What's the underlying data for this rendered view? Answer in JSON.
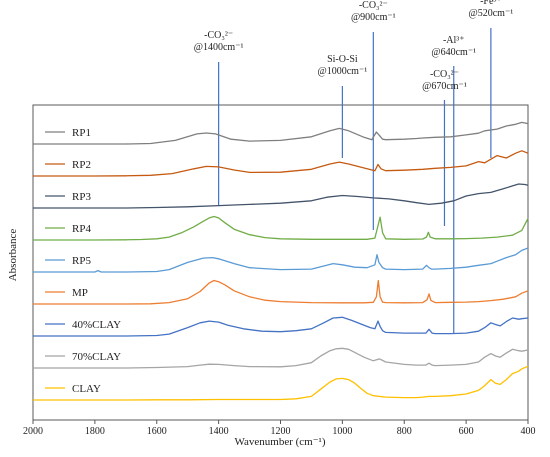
{
  "chart_data": {
    "type": "line",
    "title": "",
    "xlabel": "Wavenumber (cm⁻¹)",
    "ylabel": "Absorbance",
    "xlim": [
      2000,
      400
    ],
    "x_reversed": true,
    "xticks": [
      "2000",
      "1800",
      "1600",
      "1400",
      "1200",
      "1000",
      "800",
      "600",
      "400"
    ],
    "grid": false,
    "legend": "inline-left",
    "annotations": [
      {
        "line1": "-CO₃²⁻",
        "line2": "@1400cm⁻¹",
        "x": 1400,
        "color": "#4472c4"
      },
      {
        "line1": "Si-O-Si",
        "line2": "@1000cm⁻¹",
        "x": 1000,
        "color": "#4472c4"
      },
      {
        "line1": "-CO₃²⁻",
        "line2": "@900cm⁻¹",
        "x": 900,
        "color": "#4472c4"
      },
      {
        "line1": "-CO₃²⁻",
        "line2": "@670cm⁻¹",
        "x": 670,
        "color": "#4472c4"
      },
      {
        "line1": "-Al³⁺",
        "line2": "@640cm⁻¹",
        "x": 640,
        "color": "#4472c4"
      },
      {
        "line1": "-Fe³⁺",
        "line2": "@520cm⁻¹",
        "x": 520,
        "color": "#4472c4"
      }
    ],
    "series": [
      {
        "name": "RP1",
        "color": "#7f7f7f",
        "x": [
          2000,
          1700,
          1620,
          1540,
          1470,
          1440,
          1410,
          1360,
          1300,
          1200,
          1100,
          1040,
          1010,
          980,
          930,
          905,
          890,
          880,
          870,
          860,
          800,
          760,
          740,
          700,
          650,
          600,
          560,
          540,
          500,
          470,
          440,
          420,
          400
        ],
        "y": [
          0,
          0,
          0.02,
          0.15,
          0.42,
          0.46,
          0.42,
          0.2,
          0.12,
          0.15,
          0.3,
          0.55,
          0.65,
          0.55,
          0.28,
          0.18,
          0.5,
          0.35,
          0.2,
          0.18,
          0.2,
          0.23,
          0.25,
          0.28,
          0.3,
          0.38,
          0.45,
          0.55,
          0.62,
          0.75,
          0.82,
          0.9,
          0.85
        ]
      },
      {
        "name": "RP2",
        "color": "#c55a11",
        "x": [
          2000,
          1800,
          1700,
          1620,
          1550,
          1480,
          1440,
          1400,
          1350,
          1300,
          1200,
          1100,
          1040,
          1010,
          980,
          920,
          895,
          885,
          875,
          860,
          800,
          740,
          700,
          650,
          600,
          560,
          540,
          500,
          470,
          440,
          420,
          400
        ],
        "y": [
          0,
          0,
          0.01,
          0.03,
          0.1,
          0.3,
          0.4,
          0.38,
          0.25,
          0.15,
          0.16,
          0.28,
          0.5,
          0.58,
          0.5,
          0.3,
          0.22,
          0.48,
          0.3,
          0.22,
          0.24,
          0.28,
          0.32,
          0.36,
          0.42,
          0.6,
          0.55,
          0.85,
          0.75,
          0.95,
          1.05,
          0.95
        ]
      },
      {
        "name": "RP3",
        "color": "#44546a",
        "x": [
          2000,
          1700,
          1600,
          1500,
          1400,
          1300,
          1200,
          1100,
          1050,
          1000,
          950,
          900,
          850,
          800,
          760,
          720,
          680,
          640,
          600,
          560,
          520,
          480,
          450,
          430,
          410,
          400
        ],
        "y": [
          0,
          0,
          0.02,
          0.05,
          0.1,
          0.15,
          0.2,
          0.3,
          0.45,
          0.52,
          0.48,
          0.42,
          0.38,
          0.3,
          0.22,
          0.15,
          0.2,
          0.3,
          0.5,
          0.6,
          0.65,
          0.8,
          0.92,
          1.0,
          0.98,
          0.95
        ]
      },
      {
        "name": "RP4",
        "color": "#70ad47",
        "x": [
          2000,
          1800,
          1700,
          1650,
          1600,
          1560,
          1520,
          1480,
          1450,
          1430,
          1415,
          1400,
          1380,
          1350,
          1300,
          1250,
          1200,
          1100,
          1000,
          920,
          895,
          885,
          878,
          870,
          860,
          800,
          740,
          728,
          722,
          716,
          700,
          650,
          600,
          550,
          500,
          450,
          420,
          400
        ],
        "y": [
          0,
          0,
          0.01,
          0.02,
          0.05,
          0.12,
          0.3,
          0.55,
          0.78,
          0.92,
          0.98,
          0.92,
          0.72,
          0.45,
          0.22,
          0.1,
          0.05,
          0.03,
          0.03,
          0.03,
          0.08,
          0.6,
          0.95,
          0.3,
          0.05,
          0.03,
          0.04,
          0.12,
          0.32,
          0.12,
          0.05,
          0.05,
          0.06,
          0.08,
          0.12,
          0.2,
          0.4,
          0.9
        ]
      },
      {
        "name": "RP5",
        "color": "#5b9bd5",
        "x": [
          2000,
          1800,
          1790,
          1780,
          1700,
          1600,
          1560,
          1500,
          1450,
          1420,
          1400,
          1350,
          1300,
          1200,
          1100,
          1060,
          1030,
          1000,
          960,
          920,
          895,
          888,
          882,
          870,
          860,
          800,
          740,
          728,
          720,
          712,
          700,
          650,
          600,
          560,
          520,
          500,
          470,
          440,
          420,
          400
        ],
        "y": [
          0,
          0,
          0.06,
          0,
          0,
          0.02,
          0.1,
          0.4,
          0.58,
          0.6,
          0.55,
          0.35,
          0.18,
          0.1,
          0.12,
          0.25,
          0.35,
          0.3,
          0.2,
          0.18,
          0.3,
          0.72,
          0.4,
          0.18,
          0.12,
          0.1,
          0.12,
          0.28,
          0.18,
          0.12,
          0.12,
          0.15,
          0.2,
          0.28,
          0.35,
          0.45,
          0.6,
          0.72,
          0.9,
          1.0
        ]
      },
      {
        "name": "MP",
        "color": "#ed7d31",
        "x": [
          2000,
          1700,
          1620,
          1560,
          1500,
          1460,
          1430,
          1415,
          1400,
          1380,
          1350,
          1300,
          1250,
          1200,
          1100,
          1000,
          930,
          900,
          890,
          884,
          878,
          870,
          860,
          800,
          740,
          726,
          720,
          714,
          700,
          650,
          600,
          560,
          520,
          480,
          440,
          420,
          400
        ],
        "y": [
          0,
          0,
          0.01,
          0.06,
          0.22,
          0.52,
          0.88,
          0.98,
          0.93,
          0.8,
          0.55,
          0.3,
          0.16,
          0.1,
          0.06,
          0.05,
          0.05,
          0.07,
          0.3,
          0.98,
          0.3,
          0.08,
          0.06,
          0.05,
          0.06,
          0.18,
          0.42,
          0.15,
          0.06,
          0.07,
          0.08,
          0.1,
          0.14,
          0.2,
          0.3,
          0.45,
          0.55
        ]
      },
      {
        "name": "40%CLAY",
        "color": "#4472c4",
        "x": [
          2000,
          1700,
          1600,
          1560,
          1500,
          1460,
          1430,
          1400,
          1370,
          1320,
          1260,
          1200,
          1150,
          1100,
          1060,
          1030,
          1000,
          970,
          940,
          910,
          895,
          885,
          878,
          870,
          860,
          800,
          760,
          730,
          720,
          710,
          700,
          650,
          600,
          560,
          540,
          520,
          505,
          490,
          470,
          450,
          430,
          420,
          400
        ],
        "y": [
          0,
          0,
          0.02,
          0.08,
          0.35,
          0.55,
          0.62,
          0.58,
          0.45,
          0.3,
          0.2,
          0.18,
          0.22,
          0.3,
          0.55,
          0.75,
          0.78,
          0.65,
          0.5,
          0.35,
          0.3,
          0.62,
          0.4,
          0.22,
          0.15,
          0.12,
          0.12,
          0.12,
          0.28,
          0.12,
          0.1,
          0.1,
          0.12,
          0.2,
          0.35,
          0.55,
          0.48,
          0.42,
          0.6,
          0.75,
          0.7,
          0.72,
          0.75
        ]
      },
      {
        "name": "70%CLAY",
        "color": "#a5a5a5",
        "x": [
          2000,
          1700,
          1600,
          1500,
          1460,
          1430,
          1400,
          1350,
          1300,
          1200,
          1150,
          1100,
          1070,
          1040,
          1020,
          1000,
          980,
          960,
          930,
          900,
          880,
          860,
          800,
          760,
          730,
          720,
          710,
          700,
          650,
          600,
          560,
          540,
          520,
          505,
          490,
          470,
          450,
          430,
          420,
          400
        ],
        "y": [
          0,
          0,
          0.02,
          0.06,
          0.12,
          0.16,
          0.15,
          0.1,
          0.06,
          0.05,
          0.1,
          0.22,
          0.5,
          0.72,
          0.8,
          0.82,
          0.78,
          0.65,
          0.45,
          0.3,
          0.38,
          0.25,
          0.15,
          0.12,
          0.12,
          0.2,
          0.12,
          0.1,
          0.12,
          0.15,
          0.25,
          0.45,
          0.6,
          0.5,
          0.45,
          0.62,
          0.78,
          0.72,
          0.7,
          0.75
        ]
      },
      {
        "name": "CLAY",
        "color": "#ffc000",
        "x": [
          2000,
          1700,
          1600,
          1500,
          1400,
          1300,
          1200,
          1150,
          1100,
          1070,
          1040,
          1020,
          1000,
          980,
          960,
          940,
          920,
          900,
          880,
          860,
          800,
          760,
          740,
          720,
          700,
          650,
          600,
          560,
          540,
          520,
          505,
          490,
          470,
          450,
          430,
          420,
          400
        ],
        "y": [
          0,
          0,
          0.01,
          0.01,
          0.02,
          0.02,
          0.02,
          0.05,
          0.15,
          0.45,
          0.75,
          0.88,
          0.9,
          0.85,
          0.7,
          0.48,
          0.28,
          0.18,
          0.15,
          0.12,
          0.1,
          0.1,
          0.12,
          0.15,
          0.15,
          0.18,
          0.25,
          0.4,
          0.6,
          0.85,
          0.7,
          0.65,
          0.85,
          1.1,
          1.2,
          1.3,
          1.4
        ]
      }
    ]
  }
}
